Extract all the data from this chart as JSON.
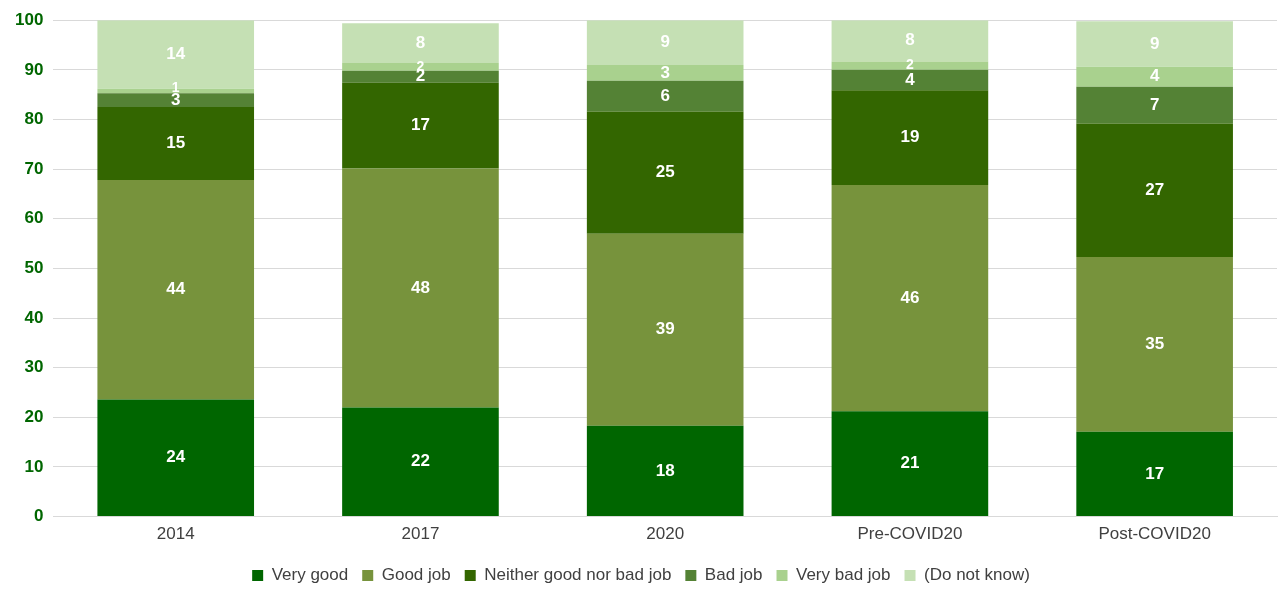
{
  "chart_data": {
    "type": "bar",
    "stacked": true,
    "categories": [
      "2014",
      "2017",
      "2020",
      "Pre-COVID20",
      "Post-COVID20"
    ],
    "series": [
      {
        "name": "Very good",
        "color": "#006600",
        "values": [
          23.6,
          22.0,
          18.3,
          21.2,
          17.1
        ],
        "value_labels": [
          "24",
          "22",
          "18",
          "21",
          "17"
        ]
      },
      {
        "name": "Good job",
        "color": "#77933c",
        "values": [
          44.2,
          48.1,
          38.7,
          45.6,
          35.2
        ],
        "value_labels": [
          "44",
          "48",
          "39",
          "46",
          "35"
        ]
      },
      {
        "name": "Neither good nor bad job",
        "color": "#336600",
        "values": [
          14.7,
          17.3,
          24.6,
          19.1,
          26.9
        ],
        "value_labels": [
          "15",
          "17",
          "25",
          "19",
          "27"
        ]
      },
      {
        "name": "Bad job",
        "color": "#548235",
        "values": [
          2.8,
          2.4,
          6.2,
          4.1,
          7.4
        ],
        "value_labels": [
          "3",
          "2",
          "6",
          "4",
          "7"
        ]
      },
      {
        "name": "Very bad job",
        "color": "#a9d18e",
        "values": [
          0.9,
          1.6,
          3.2,
          1.7,
          4.0
        ],
        "value_labels": [
          "1",
          "2",
          "3",
          "2",
          "4"
        ]
      },
      {
        "name": "(Do not know)",
        "color": "#c5e0b4",
        "values": [
          13.8,
          8.0,
          9.0,
          8.3,
          9.2
        ],
        "value_labels": [
          "14",
          "8",
          "9",
          "8",
          "9"
        ]
      }
    ],
    "ylim": [
      0,
      100
    ],
    "yticks": [
      0,
      10,
      20,
      30,
      40,
      50,
      60,
      70,
      80,
      90,
      100
    ],
    "grid": "y",
    "legend": "bottom"
  }
}
